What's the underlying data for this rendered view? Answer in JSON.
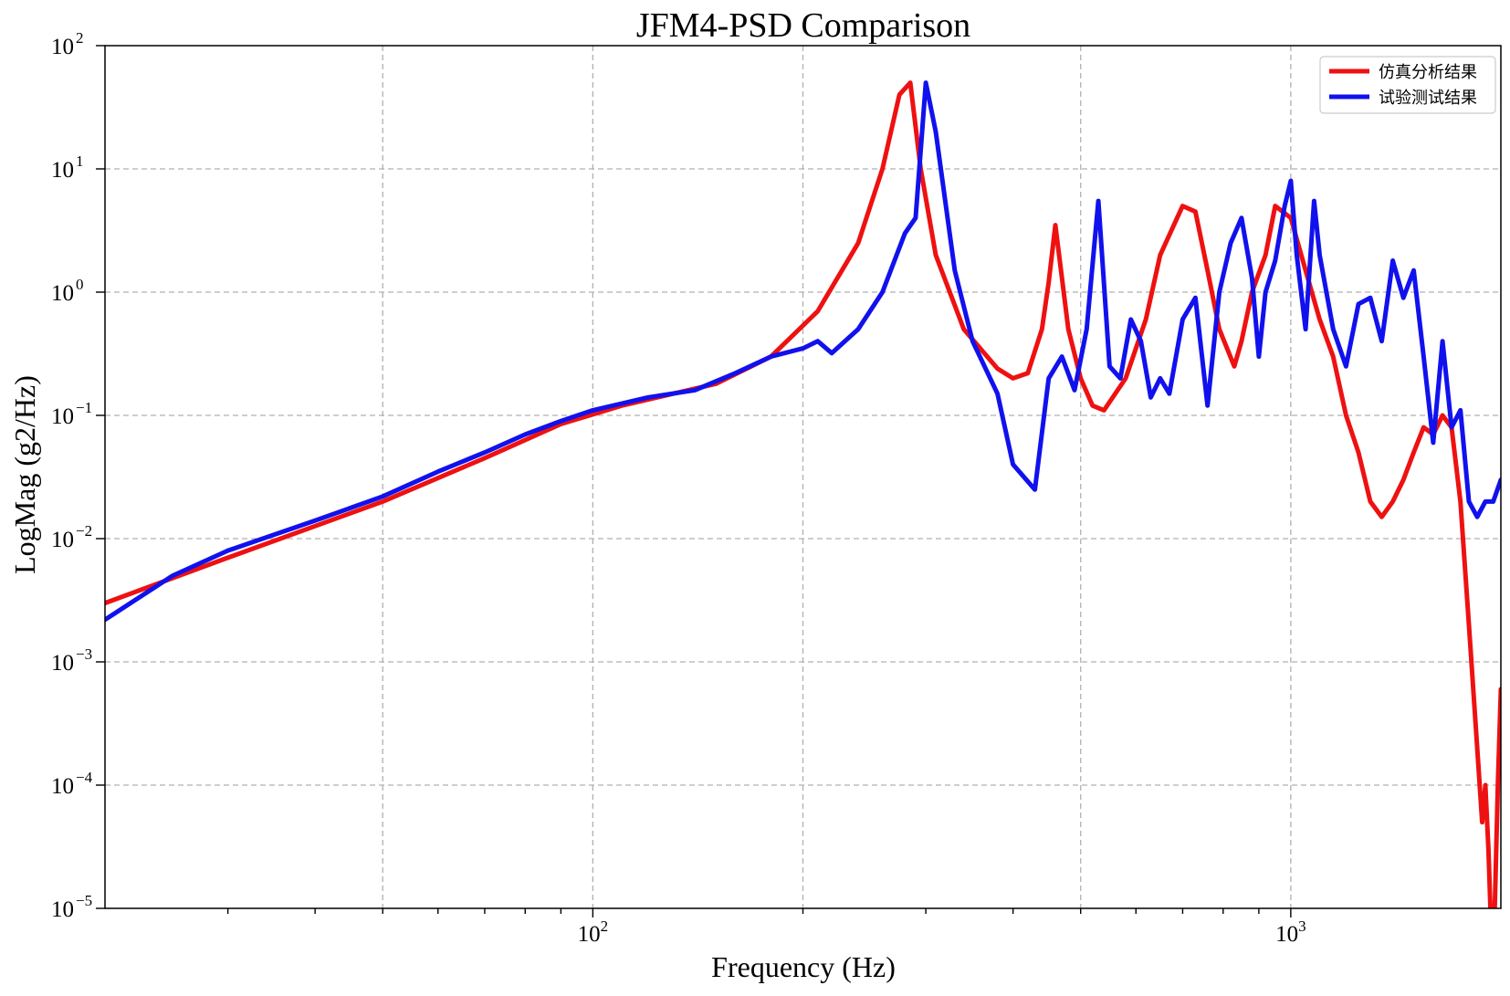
{
  "chart_data": {
    "type": "line",
    "title": "JFM4-PSD Comparison",
    "xlabel": "Frequency (Hz)",
    "ylabel": "LogMag (g2/Hz)",
    "xscale": "log",
    "yscale": "log",
    "xlim": [
      20,
      2000
    ],
    "ylim": [
      1e-05,
      100
    ],
    "grid": true,
    "legend_position": "top-right",
    "x_ticks": [
      {
        "value": 100,
        "base": "10",
        "exp": "2"
      },
      {
        "value": 1000,
        "base": "10",
        "exp": "3"
      }
    ],
    "y_ticks": [
      {
        "value": 100,
        "base": "10",
        "exp": "2"
      },
      {
        "value": 10,
        "base": "10",
        "exp": "1"
      },
      {
        "value": 1,
        "base": "10",
        "exp": "0"
      },
      {
        "value": 0.1,
        "base": "10",
        "exp": "−1"
      },
      {
        "value": 0.01,
        "base": "10",
        "exp": "−2"
      },
      {
        "value": 0.001,
        "base": "10",
        "exp": "−3"
      },
      {
        "value": 0.0001,
        "base": "10",
        "exp": "−4"
      },
      {
        "value": 1e-05,
        "base": "10",
        "exp": "−5"
      }
    ],
    "series": [
      {
        "name": "仿真分析结果",
        "color": "#ee1111",
        "x": [
          20,
          30,
          50,
          70,
          90,
          110,
          150,
          180,
          210,
          240,
          260,
          275,
          285,
          295,
          310,
          340,
          380,
          400,
          420,
          440,
          450,
          460,
          480,
          500,
          520,
          540,
          580,
          620,
          650,
          700,
          730,
          760,
          790,
          830,
          850,
          880,
          920,
          950,
          1000,
          1050,
          1100,
          1150,
          1200,
          1250,
          1300,
          1350,
          1400,
          1450,
          1500,
          1550,
          1600,
          1650,
          1700,
          1750,
          1800,
          1850,
          1880,
          1900,
          1920,
          1940,
          1960,
          1980,
          2000
        ],
        "y": [
          0.003,
          0.007,
          0.02,
          0.045,
          0.085,
          0.12,
          0.18,
          0.3,
          0.7,
          2.5,
          10,
          40,
          50,
          10,
          2,
          0.5,
          0.24,
          0.2,
          0.22,
          0.5,
          1.2,
          3.5,
          0.5,
          0.2,
          0.12,
          0.11,
          0.2,
          0.6,
          2,
          5,
          4.5,
          1.5,
          0.5,
          0.25,
          0.4,
          1.0,
          2,
          5,
          4,
          1.5,
          0.6,
          0.3,
          0.1,
          0.05,
          0.02,
          0.015,
          0.02,
          0.03,
          0.05,
          0.08,
          0.07,
          0.1,
          0.08,
          0.02,
          0.002,
          0.0002,
          5e-05,
          0.0001,
          3e-05,
          5e-06,
          1e-05,
          0.0001,
          0.0006
        ]
      },
      {
        "name": "试验测试结果",
        "color": "#1111ee",
        "x": [
          20,
          25,
          30,
          40,
          50,
          60,
          70,
          80,
          90,
          100,
          120,
          140,
          160,
          180,
          200,
          210,
          220,
          240,
          260,
          280,
          290,
          300,
          310,
          330,
          350,
          380,
          400,
          430,
          450,
          470,
          490,
          510,
          530,
          550,
          570,
          590,
          610,
          630,
          650,
          670,
          700,
          730,
          760,
          790,
          820,
          850,
          880,
          900,
          920,
          950,
          980,
          1000,
          1020,
          1050,
          1080,
          1100,
          1150,
          1200,
          1250,
          1300,
          1350,
          1400,
          1450,
          1500,
          1550,
          1600,
          1650,
          1700,
          1750,
          1800,
          1850,
          1900,
          1950,
          2000
        ],
        "y": [
          0.0022,
          0.005,
          0.008,
          0.014,
          0.022,
          0.035,
          0.05,
          0.07,
          0.09,
          0.11,
          0.14,
          0.16,
          0.22,
          0.3,
          0.35,
          0.4,
          0.32,
          0.5,
          1.0,
          3.0,
          4.0,
          50,
          20,
          1.5,
          0.4,
          0.15,
          0.04,
          0.025,
          0.2,
          0.3,
          0.16,
          0.5,
          5.5,
          0.25,
          0.2,
          0.6,
          0.4,
          0.14,
          0.2,
          0.15,
          0.6,
          0.9,
          0.12,
          1.0,
          2.5,
          4.0,
          1.3,
          0.3,
          1.0,
          1.8,
          5.0,
          8.0,
          2.0,
          0.5,
          5.5,
          2.0,
          0.5,
          0.25,
          0.8,
          0.9,
          0.4,
          1.8,
          0.9,
          1.5,
          0.3,
          0.06,
          0.4,
          0.08,
          0.11,
          0.02,
          0.015,
          0.02,
          0.02,
          0.03
        ]
      }
    ]
  }
}
